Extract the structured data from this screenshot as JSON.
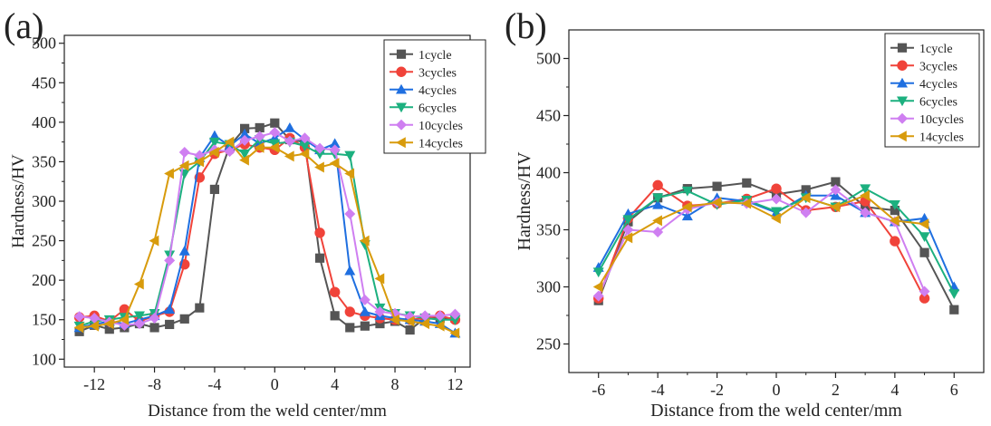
{
  "chart_data": [
    {
      "type": "line",
      "panel_label": "(a)",
      "xlabel": "Distance from the weld center/mm",
      "ylabel": "Hardness/HV",
      "xlim": [
        -14,
        13
      ],
      "ylim": [
        90,
        510
      ],
      "xticks": [
        "-12",
        "-8",
        "-4",
        "0",
        "4",
        "8",
        "12"
      ],
      "xtick_values": [
        -12,
        -8,
        -4,
        0,
        4,
        8,
        12
      ],
      "yticks": [
        "100",
        "150",
        "200",
        "250",
        "300",
        "350",
        "400",
        "450",
        "500"
      ],
      "ytick_values": [
        100,
        150,
        200,
        250,
        300,
        350,
        400,
        450,
        500
      ],
      "series": [
        {
          "name": "1cycle",
          "color": "#555555",
          "marker": "square",
          "x": [
            -13,
            -12,
            -11,
            -10,
            -9,
            -8,
            -7,
            -6,
            -5,
            -4,
            -3,
            -2,
            -1,
            0,
            1,
            2,
            3,
            4,
            5,
            6,
            7,
            8,
            9,
            10,
            11,
            12
          ],
          "y": [
            135,
            143,
            138,
            140,
            145,
            140,
            144,
            151,
            165,
            315,
            370,
            392,
            393,
            399,
            378,
            375,
            228,
            155,
            140,
            142,
            145,
            148,
            137,
            152,
            152,
            152
          ]
        },
        {
          "name": "3cycles",
          "color": "#f0433a",
          "marker": "circle",
          "x": [
            -13,
            -12,
            -11,
            -10,
            -9,
            -8,
            -7,
            -6,
            -5,
            -4,
            -3,
            -2,
            -1,
            0,
            1,
            2,
            3,
            4,
            5,
            6,
            7,
            8,
            9,
            10,
            11,
            12
          ],
          "y": [
            153,
            155,
            148,
            163,
            148,
            155,
            160,
            220,
            330,
            360,
            365,
            372,
            368,
            365,
            380,
            368,
            260,
            185,
            160,
            155,
            152,
            150,
            150,
            152,
            155,
            150
          ]
        },
        {
          "name": "4cycles",
          "color": "#1f6fe0",
          "marker": "triangle-up",
          "x": [
            -13,
            -12,
            -11,
            -10,
            -9,
            -8,
            -7,
            -6,
            -5,
            -4,
            -3,
            -2,
            -1,
            0,
            1,
            2,
            3,
            4,
            5,
            6,
            7,
            8,
            9,
            10,
            11,
            12
          ],
          "y": [
            140,
            144,
            148,
            145,
            150,
            155,
            163,
            237,
            355,
            383,
            370,
            385,
            373,
            380,
            393,
            378,
            365,
            373,
            212,
            160,
            155,
            152,
            150,
            148,
            145,
            133
          ]
        },
        {
          "name": "6cycles",
          "color": "#1cb07f",
          "marker": "triangle-down",
          "x": [
            -13,
            -12,
            -11,
            -10,
            -9,
            -8,
            -7,
            -6,
            -5,
            -4,
            -3,
            -2,
            -1,
            0,
            1,
            2,
            3,
            4,
            5,
            6,
            7,
            8,
            9,
            10,
            11,
            12
          ],
          "y": [
            142,
            148,
            150,
            153,
            155,
            158,
            232,
            335,
            350,
            375,
            372,
            360,
            378,
            373,
            375,
            370,
            360,
            360,
            358,
            245,
            165,
            158,
            155,
            152,
            150,
            150
          ]
        },
        {
          "name": "10cycles",
          "color": "#cf7ff1",
          "marker": "diamond",
          "x": [
            -13,
            -12,
            -11,
            -10,
            -9,
            -8,
            -7,
            -6,
            -5,
            -4,
            -3,
            -2,
            -1,
            0,
            1,
            2,
            3,
            4,
            5,
            6,
            7,
            8,
            9,
            10,
            11,
            12
          ],
          "y": [
            154,
            152,
            147,
            143,
            145,
            152,
            225,
            362,
            358,
            365,
            363,
            377,
            382,
            387,
            376,
            380,
            367,
            365,
            284,
            175,
            160,
            158,
            154,
            155,
            155,
            157
          ]
        },
        {
          "name": "14cycles",
          "color": "#d89b0c",
          "marker": "triangle-left",
          "x": [
            -13,
            -12,
            -11,
            -10,
            -9,
            -8,
            -7,
            -6,
            -5,
            -4,
            -3,
            -2,
            -1,
            0,
            1,
            2,
            3,
            4,
            5,
            6,
            7,
            8,
            9,
            10,
            11,
            12
          ],
          "y": [
            140,
            142,
            145,
            150,
            195,
            250,
            335,
            345,
            350,
            362,
            375,
            352,
            368,
            368,
            357,
            360,
            343,
            348,
            335,
            250,
            202,
            150,
            148,
            145,
            142,
            133
          ]
        }
      ]
    },
    {
      "type": "line",
      "panel_label": "(b)",
      "xlabel": "Distance from the weld center/mm",
      "ylabel": "Hardness/HV",
      "xlim": [
        -7,
        7
      ],
      "ylim": [
        225,
        525
      ],
      "xticks": [
        "-6",
        "-4",
        "-2",
        "0",
        "2",
        "4",
        "6"
      ],
      "xtick_values": [
        -6,
        -4,
        -2,
        0,
        2,
        4,
        6
      ],
      "yticks": [
        "250",
        "300",
        "350",
        "400",
        "450",
        "500"
      ],
      "ytick_values": [
        250,
        300,
        350,
        400,
        450,
        500
      ],
      "series": [
        {
          "name": "1cycle",
          "color": "#555555",
          "marker": "square",
          "x": [
            -6,
            -5,
            -4,
            -3,
            -2,
            -1,
            0,
            1,
            2,
            3,
            4,
            5,
            6
          ],
          "y": [
            288,
            357,
            378,
            386,
            388,
            391,
            381,
            385,
            392,
            370,
            367,
            330,
            280
          ]
        },
        {
          "name": "3cycles",
          "color": "#f0433a",
          "marker": "circle",
          "x": [
            -6,
            -5,
            -4,
            -3,
            -2,
            -1,
            0,
            1,
            2,
            3,
            4,
            5
          ],
          "y": [
            290,
            360,
            389,
            371,
            373,
            377,
            386,
            367,
            370,
            375,
            340,
            290
          ]
        },
        {
          "name": "4cycles",
          "color": "#1f6fe0",
          "marker": "triangle-up",
          "x": [
            -6,
            -5,
            -4,
            -3,
            -2,
            -1,
            0,
            1,
            2,
            3,
            4,
            5,
            6
          ],
          "y": [
            317,
            364,
            372,
            362,
            378,
            375,
            365,
            380,
            380,
            365,
            357,
            360,
            300
          ]
        },
        {
          "name": "6cycles",
          "color": "#1cb07f",
          "marker": "triangle-down",
          "x": [
            -6,
            -5,
            -4,
            -3,
            -2,
            -1,
            0,
            1,
            2,
            3,
            4,
            5,
            6
          ],
          "y": [
            313,
            359,
            378,
            384,
            372,
            376,
            366,
            378,
            370,
            386,
            372,
            344,
            294
          ]
        },
        {
          "name": "10cycles",
          "color": "#cf7ff1",
          "marker": "diamond",
          "x": [
            -6,
            -5,
            -4,
            -3,
            -2,
            -1,
            0,
            1,
            2,
            3,
            4,
            5
          ],
          "y": [
            292,
            350,
            348,
            368,
            374,
            373,
            377,
            365,
            385,
            365,
            357,
            296
          ]
        },
        {
          "name": "14cycles",
          "color": "#d89b0c",
          "marker": "triangle-left",
          "x": [
            -6,
            -5,
            -4,
            -3,
            -2,
            -1,
            0,
            1,
            2,
            3,
            4,
            5
          ],
          "y": [
            300,
            343,
            358,
            370,
            374,
            373,
            360,
            378,
            370,
            380,
            358,
            355
          ]
        }
      ]
    }
  ]
}
